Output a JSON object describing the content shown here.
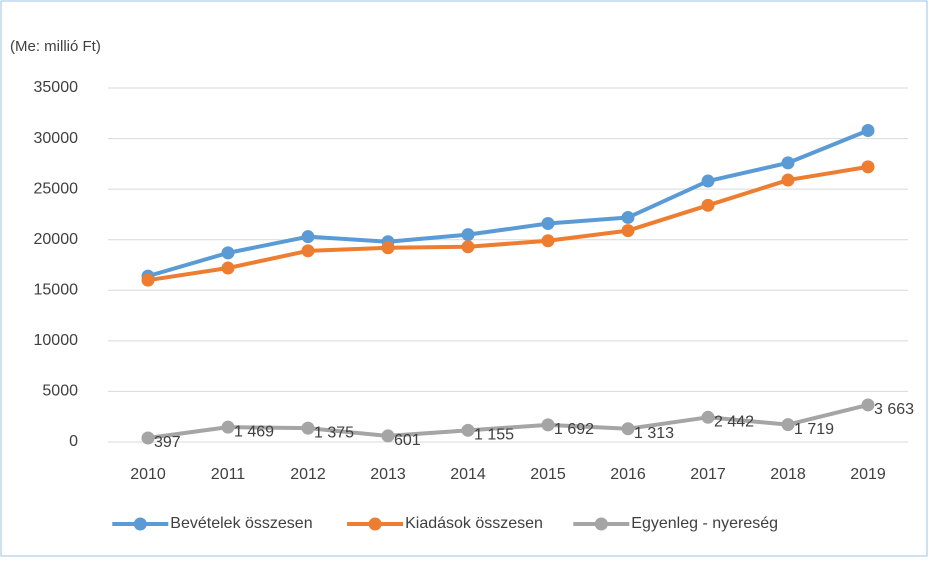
{
  "chart_data": {
    "type": "line",
    "subtitle": "(Me: millió Ft)",
    "categories": [
      "2010",
      "2011",
      "2012",
      "2013",
      "2014",
      "2015",
      "2016",
      "2017",
      "2018",
      "2019"
    ],
    "series": [
      {
        "name": "Bevételek összesen",
        "color": "#5b9bd5",
        "values": [
          16400,
          18700,
          20300,
          19800,
          20500,
          21600,
          22200,
          25800,
          27600,
          30800
        ]
      },
      {
        "name": "Kiadások összesen",
        "color": "#ed7d31",
        "values": [
          16000,
          17200,
          18900,
          19200,
          19300,
          19900,
          20900,
          23400,
          25900,
          27200
        ]
      },
      {
        "name": "Egyenleg - nyereség",
        "color": "#a5a5a5",
        "values": [
          397,
          1469,
          1375,
          601,
          1155,
          1692,
          1313,
          2442,
          1719,
          3663
        ],
        "value_labels": [
          "397",
          "1 469",
          "1 375",
          "601",
          "1 155",
          "1 692",
          "1 313",
          "2 442",
          "1 719",
          "3 663"
        ]
      }
    ],
    "ylim": [
      0,
      35000
    ],
    "yticks": [
      0,
      5000,
      10000,
      15000,
      20000,
      25000,
      30000,
      35000
    ],
    "grid": true,
    "legend": "bottom"
  }
}
